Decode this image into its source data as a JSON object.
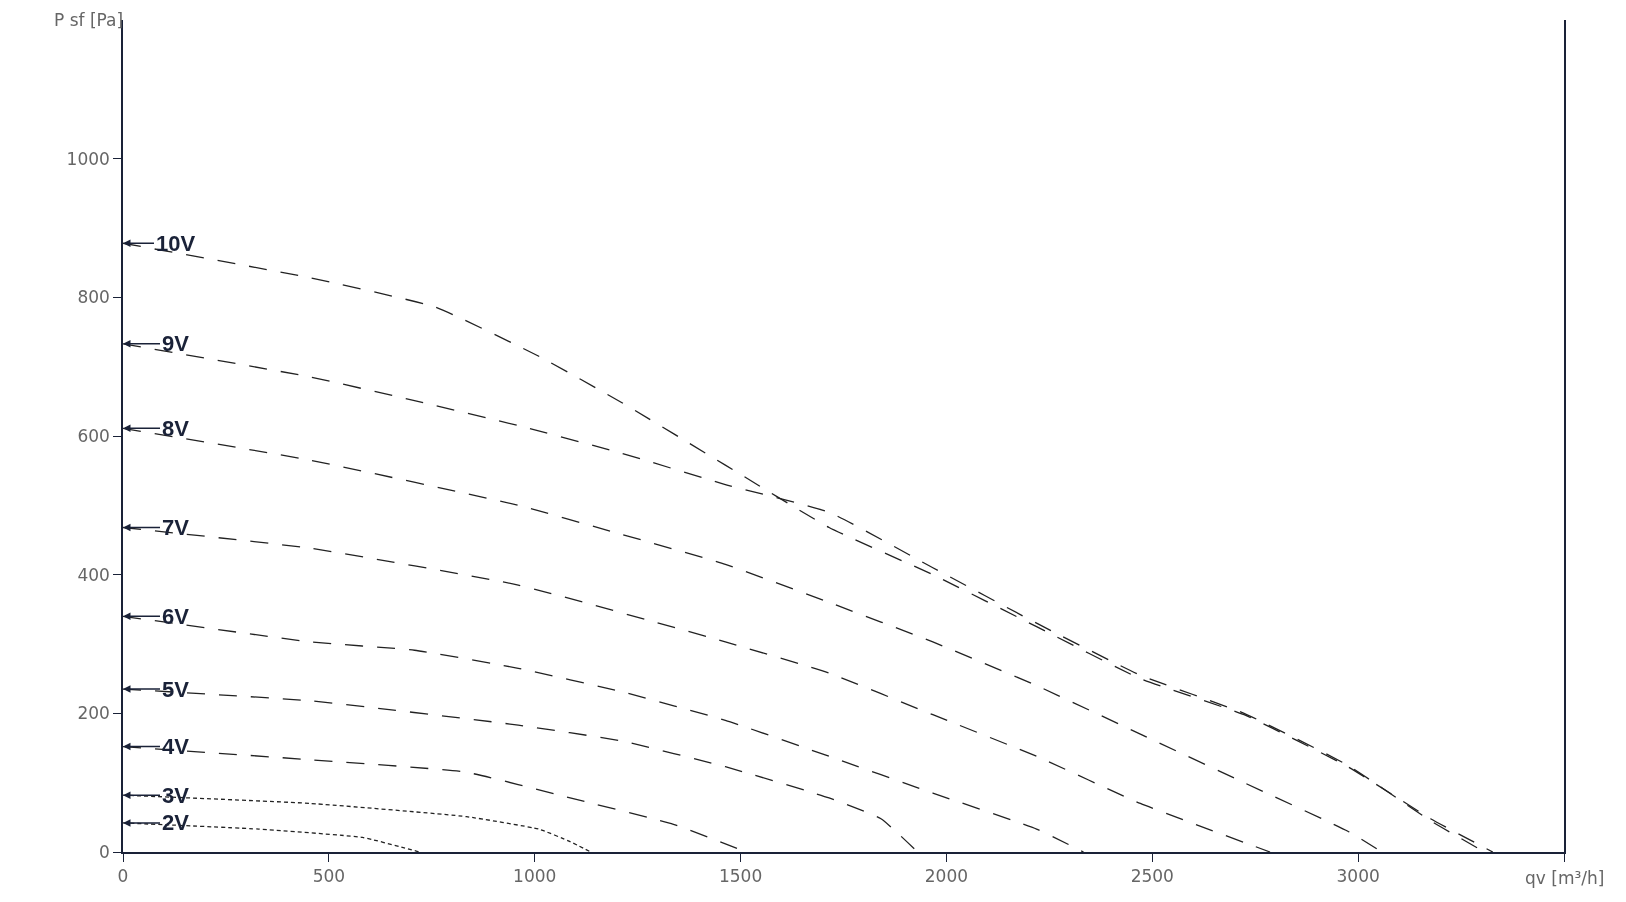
{
  "chart_data": {
    "type": "line",
    "xlabel": "qv [m³/h]",
    "ylabel": "P sf [Pa]",
    "xlim": [
      0,
      3500
    ],
    "ylim": [
      0,
      1200
    ],
    "xticks": [
      0,
      500,
      1000,
      1500,
      2000,
      2500,
      3000,
      {
        "value": 3500,
        "label": null
      }
    ],
    "yticks": [
      0,
      200,
      400,
      600,
      800,
      1000
    ],
    "grid": false,
    "legend": "left",
    "marker": "none",
    "series": [
      {
        "name": "2V",
        "color": "#222222",
        "line_style": "dotted",
        "x": [
          0,
          330,
          582,
          683,
          720
        ],
        "values": [
          42,
          33,
          21,
          6,
          0
        ]
      },
      {
        "name": "3V",
        "color": "#222222",
        "line_style": "dotted",
        "x": [
          0,
          456,
          834,
          1010,
          1086,
          1136
        ],
        "values": [
          82,
          70,
          51,
          33,
          15,
          0
        ]
      },
      {
        "name": "4V",
        "color": "#222222",
        "line_style": "dashed",
        "x": [
          0,
          456,
          834,
          1086,
          1337,
          1514
        ],
        "values": [
          152,
          133,
          115,
          78,
          40,
          0
        ]
      },
      {
        "name": "5V",
        "color": "#222222",
        "line_style": "dashed",
        "x": [
          0,
          456,
          960,
          1212,
          1463,
          1715,
          1841,
          1930
        ],
        "values": [
          235,
          218,
          183,
          160,
          123,
          78,
          48,
          0
        ]
      },
      {
        "name": "6V",
        "color": "#222222",
        "line_style": "dashed",
        "x": [
          0,
          456,
          708,
          960,
          1212,
          1463,
          1715,
          1967,
          2219,
          2333
        ],
        "values": [
          340,
          303,
          291,
          265,
          231,
          190,
          138,
          85,
          33,
          0
        ]
      },
      {
        "name": "7V",
        "color": "#222222",
        "line_style": "dashed",
        "x": [
          0,
          456,
          960,
          1463,
          1715,
          1967,
          2219,
          2471,
          2786
        ],
        "values": [
          468,
          438,
          385,
          303,
          258,
          198,
          138,
          70,
          0
        ]
      },
      {
        "name": "8V",
        "color": "#222222",
        "line_style": "dashed",
        "x": [
          0,
          456,
          960,
          1212,
          1463,
          1715,
          1967,
          2219,
          2471,
          2723,
          2975,
          3058
        ],
        "values": [
          611,
          565,
          500,
          458,
          415,
          360,
          303,
          240,
          170,
          100,
          30,
          0
        ]
      },
      {
        "name": "9V",
        "color": "#222222",
        "line_style": "dashed",
        "x": [
          0,
          456,
          708,
          960,
          1212,
          1463,
          1715,
          1967,
          2219,
          2471,
          2723,
          2975,
          3176,
          3307
        ],
        "values": [
          733,
          685,
          651,
          615,
          575,
          530,
          490,
          410,
          330,
          255,
          200,
          125,
          45,
          0
        ]
      },
      {
        "name": "10V",
        "color": "#222222",
        "line_style": "dashed",
        "x": [
          0,
          456,
          758,
          1010,
          1212,
          1463,
          1715,
          1967,
          2219,
          2471,
          2723,
          2975,
          3176,
          3327
        ],
        "values": [
          878,
          828,
          786,
          715,
          648,
          558,
          468,
          400,
          325,
          250,
          198,
          123,
          48,
          0
        ]
      }
    ]
  }
}
